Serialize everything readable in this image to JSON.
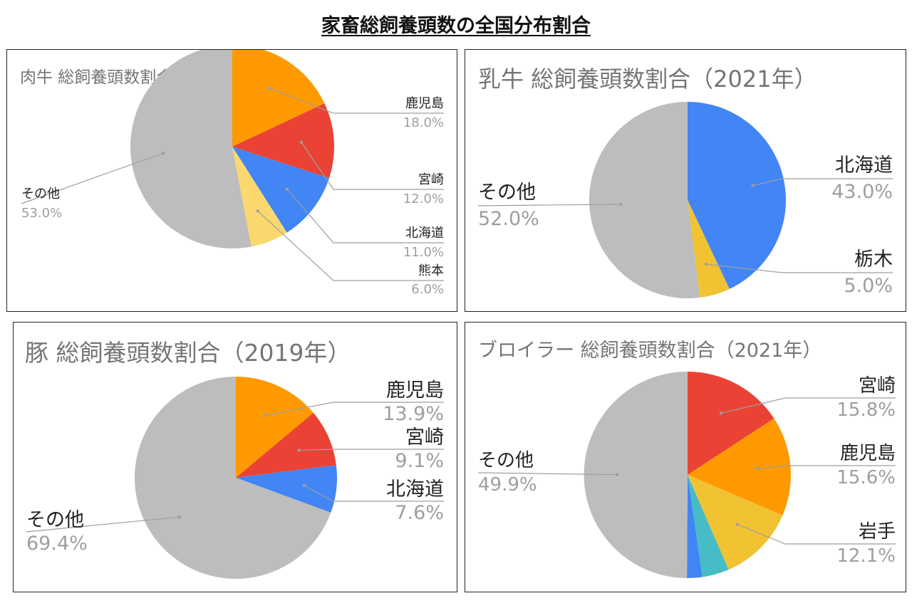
{
  "title": "家畜総飼養頭数の全国分布割合",
  "chart_data": [
    {
      "type": "pie",
      "title": "肉牛 総飼養頭数割合（2021年）",
      "slices": [
        {
          "name": "鹿児島",
          "value": 18.0,
          "label": "18.0%",
          "color": "#ff9900"
        },
        {
          "name": "宮崎",
          "value": 12.0,
          "label": "12.0%",
          "color": "#ea4335"
        },
        {
          "name": "北海道",
          "value": 11.0,
          "label": "11.0%",
          "color": "#4285f4"
        },
        {
          "name": "熊本",
          "value": 6.0,
          "label": "6.0%",
          "color": "#fbd86d"
        },
        {
          "name": "その他",
          "value": 53.0,
          "label": "53.0%",
          "color": "#bdbdbd"
        }
      ]
    },
    {
      "type": "pie",
      "title": "乳牛 総飼養頭数割合（2021年）",
      "slices": [
        {
          "name": "北海道",
          "value": 43.0,
          "label": "43.0%",
          "color": "#4285f4"
        },
        {
          "name": "栃木",
          "value": 5.0,
          "label": "5.0%",
          "color": "#f1c232"
        },
        {
          "name": "その他",
          "value": 52.0,
          "label": "52.0%",
          "color": "#bdbdbd"
        }
      ]
    },
    {
      "type": "pie",
      "title": "豚 総飼養頭数割合（2019年）",
      "slices": [
        {
          "name": "鹿児島",
          "value": 13.9,
          "label": "13.9%",
          "color": "#ff9900"
        },
        {
          "name": "宮崎",
          "value": 9.1,
          "label": "9.1%",
          "color": "#ea4335"
        },
        {
          "name": "北海道",
          "value": 7.6,
          "label": "7.6%",
          "color": "#4285f4"
        },
        {
          "name": "その他",
          "value": 69.4,
          "label": "69.4%",
          "color": "#bdbdbd"
        }
      ]
    },
    {
      "type": "pie",
      "title": "ブロイラー 総飼養頭数割合（2021年）",
      "slices": [
        {
          "name": "宮崎",
          "value": 15.8,
          "label": "15.8%",
          "color": "#ea4335"
        },
        {
          "name": "鹿児島",
          "value": 15.6,
          "label": "15.6%",
          "color": "#ff9900"
        },
        {
          "name": "岩手",
          "value": 12.1,
          "label": "12.1%",
          "color": "#f1c232"
        },
        {
          "name": "",
          "value": 4.2,
          "label": "",
          "color": "#46bdc6"
        },
        {
          "name": "",
          "value": 2.4,
          "label": "",
          "color": "#4285f4"
        },
        {
          "name": "その他",
          "value": 49.9,
          "label": "49.9%",
          "color": "#bdbdbd"
        }
      ]
    }
  ]
}
